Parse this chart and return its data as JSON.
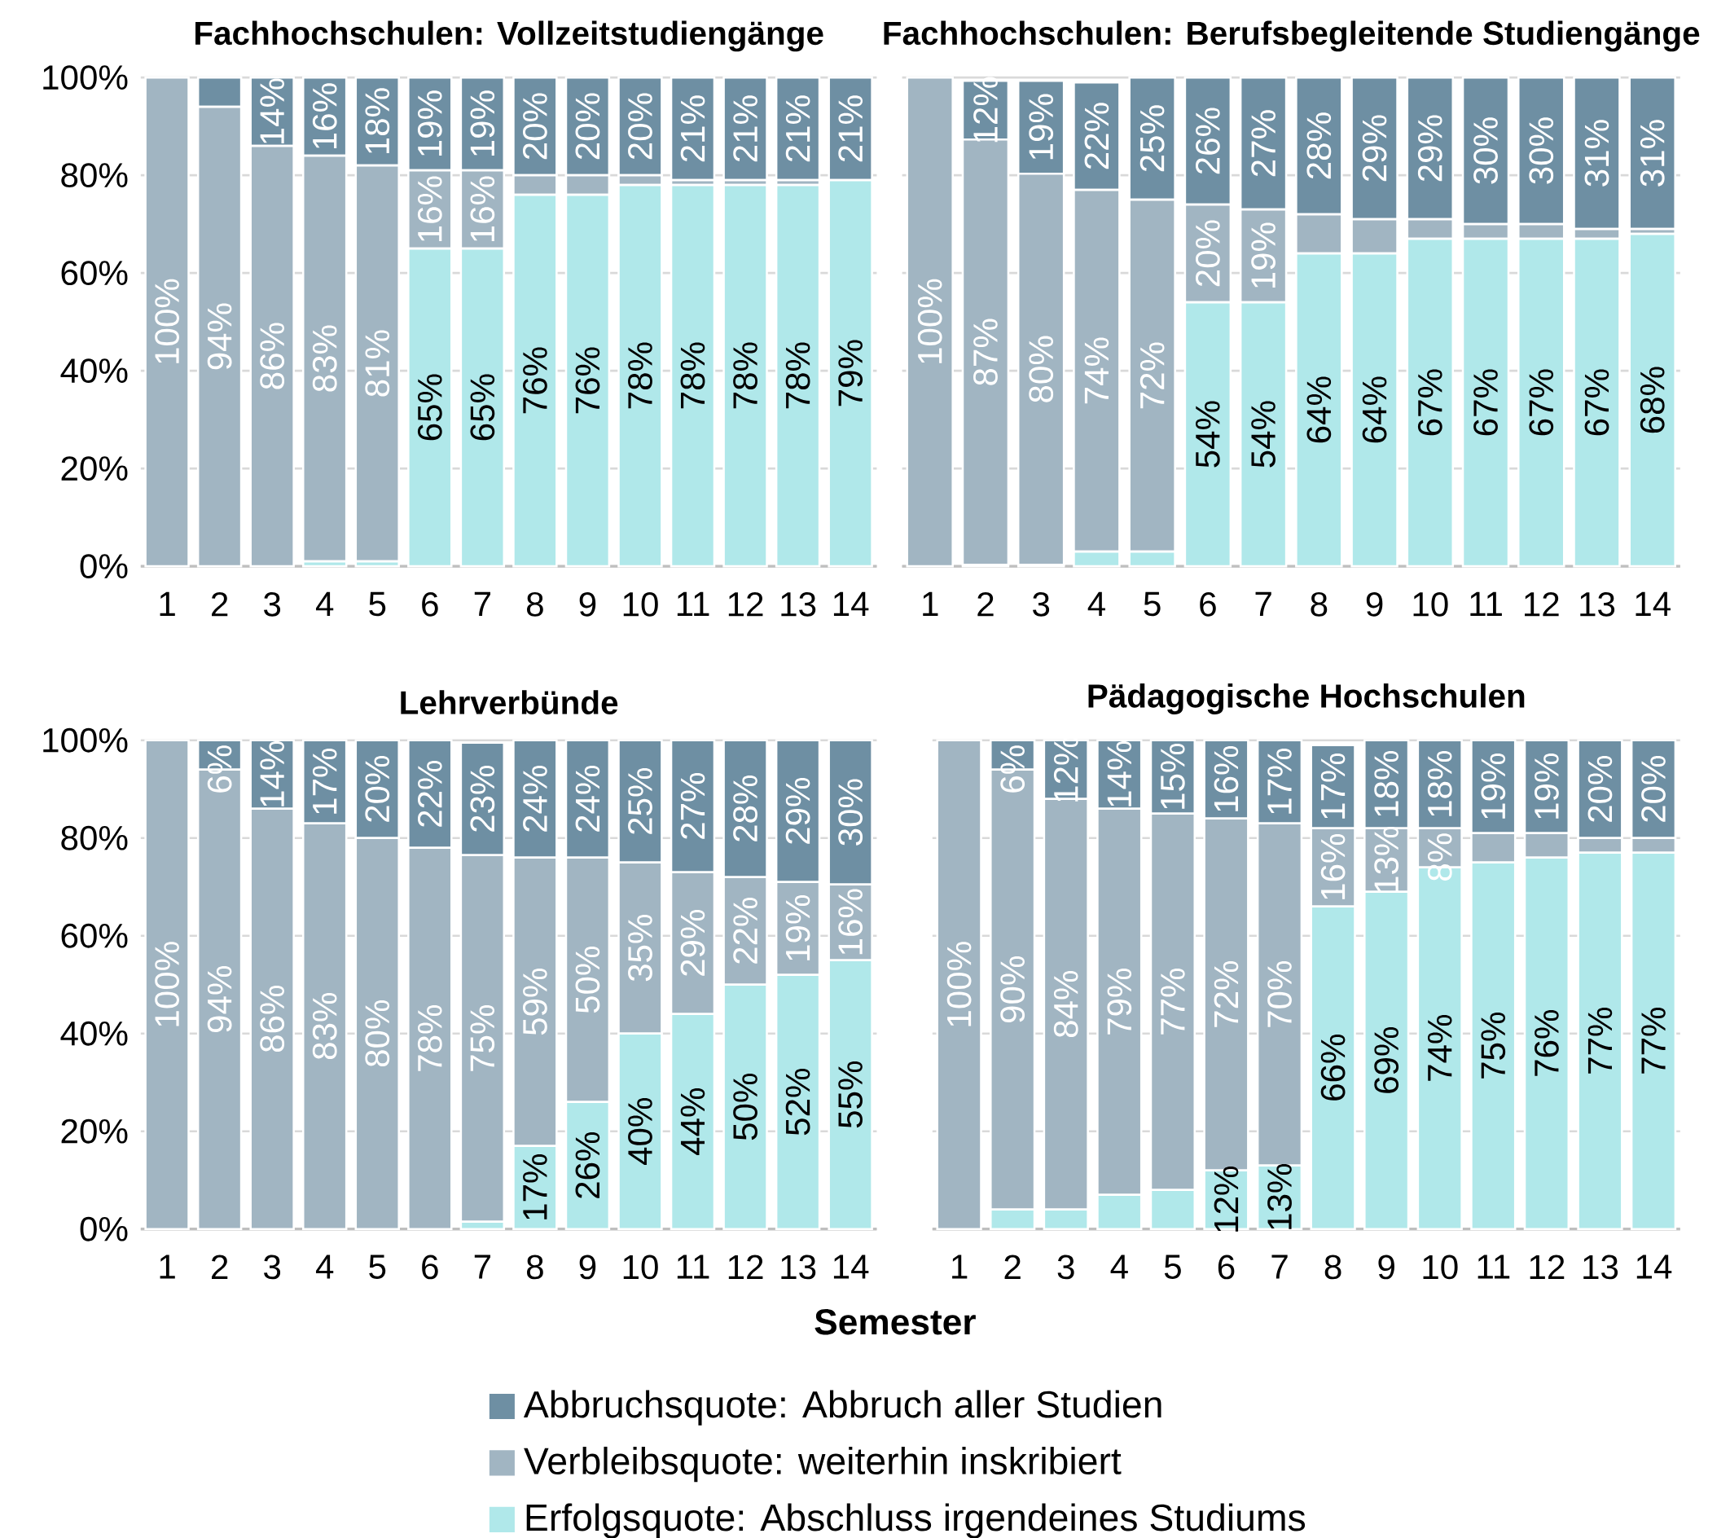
{
  "chart_data": [
    {
      "type": "bar",
      "stacked": true,
      "title": "Fachhochschulen: Vollzeitstudiengänge",
      "categories": [
        "1",
        "2",
        "3",
        "4",
        "5",
        "6",
        "7",
        "8",
        "9",
        "10",
        "11",
        "12",
        "13",
        "14"
      ],
      "ylim": [
        0,
        100
      ],
      "yticks": [
        {
          "value": 0,
          "label": "0%"
        },
        {
          "value": 20,
          "label": "20%"
        },
        {
          "value": 40,
          "label": "40%"
        },
        {
          "value": 60,
          "label": "60%"
        },
        {
          "value": 80,
          "label": "80%"
        },
        {
          "value": 100,
          "label": "100%"
        }
      ],
      "grid": "y",
      "series": [
        {
          "color": "#b0e8ea",
          "values": [
            0,
            0,
            0,
            1,
            1,
            65,
            65,
            76,
            76,
            78,
            78,
            78,
            78,
            79
          ],
          "value_labels": [
            null,
            null,
            null,
            null,
            null,
            "65%",
            "65%",
            "76%",
            "76%",
            "78%",
            "78%",
            "78%",
            "78%",
            "79%"
          ]
        },
        {
          "color": "#a1b5c2",
          "values": [
            100,
            94,
            86,
            83,
            81,
            16,
            16,
            4,
            4,
            2,
            1,
            1,
            1,
            0
          ],
          "value_labels": [
            "100%",
            "94%",
            "86%",
            "83%",
            "81%",
            "16%",
            "16%",
            null,
            null,
            null,
            null,
            null,
            null,
            null
          ]
        },
        {
          "color": "#6e8fa3",
          "values": [
            0,
            6,
            14,
            16,
            18,
            19,
            19,
            20,
            20,
            20,
            21,
            21,
            21,
            21
          ],
          "value_labels": [
            null,
            null,
            "14%",
            "16%",
            "18%",
            "19%",
            "19%",
            "20%",
            "20%",
            "20%",
            "21%",
            "21%",
            "21%",
            "21%"
          ]
        }
      ]
    },
    {
      "type": "bar",
      "stacked": true,
      "title": "Fachhochschulen: Berufsbegleitende Studiengänge",
      "categories": [
        "1",
        "2",
        "3",
        "4",
        "5",
        "6",
        "7",
        "8",
        "9",
        "10",
        "11",
        "12",
        "13",
        "14"
      ],
      "ylim": [
        0,
        100
      ],
      "yticks": [
        0,
        20,
        40,
        60,
        80,
        100
      ],
      "grid": "y",
      "tick_labels": "x",
      "series": [
        {
          "color": "#b0e8ea",
          "values": [
            0,
            0.3,
            0.3,
            3,
            3,
            54,
            54,
            64,
            64,
            67,
            67,
            67,
            67,
            68
          ],
          "value_labels": [
            null,
            null,
            null,
            null,
            null,
            "54%",
            "54%",
            "64%",
            "64%",
            "67%",
            "67%",
            "67%",
            "67%",
            "68%"
          ]
        },
        {
          "color": "#a1b5c2",
          "values": [
            100,
            87,
            80,
            74,
            72,
            20,
            19,
            8,
            7,
            4,
            3,
            3,
            2,
            1
          ],
          "value_labels": [
            "100%",
            "87%",
            "80%",
            "74%",
            "72%",
            "20%",
            "19%",
            null,
            null,
            null,
            null,
            null,
            null,
            null
          ]
        },
        {
          "color": "#6e8fa3",
          "values": [
            0,
            12,
            19,
            22,
            25,
            26,
            27,
            28,
            29,
            29,
            30,
            30,
            31,
            31
          ],
          "value_labels": [
            null,
            "12%",
            "19%",
            "22%",
            "25%",
            "26%",
            "27%",
            "28%",
            "29%",
            "29%",
            "30%",
            "30%",
            "31%",
            "31%"
          ]
        }
      ]
    },
    {
      "type": "bar",
      "stacked": true,
      "title": "Lehrverbünde",
      "categories": [
        "1",
        "2",
        "3",
        "4",
        "5",
        "6",
        "7",
        "8",
        "9",
        "10",
        "11",
        "12",
        "13",
        "14"
      ],
      "ylim": [
        0,
        100
      ],
      "yticks": [
        {
          "value": 0,
          "label": "0%"
        },
        {
          "value": 20,
          "label": "20%"
        },
        {
          "value": 40,
          "label": "40%"
        },
        {
          "value": 60,
          "label": "60%"
        },
        {
          "value": 80,
          "label": "80%"
        },
        {
          "value": 100,
          "label": "100%"
        }
      ],
      "grid": "y",
      "series": [
        {
          "color": "#b0e8ea",
          "values": [
            0,
            0,
            0,
            0,
            0,
            0,
            1.5,
            17,
            26,
            40,
            44,
            50,
            52,
            55
          ],
          "value_labels": [
            null,
            null,
            null,
            null,
            null,
            null,
            null,
            "17%",
            "26%",
            "40%",
            "44%",
            "50%",
            "52%",
            "55%"
          ]
        },
        {
          "color": "#a1b5c2",
          "values": [
            100,
            94,
            86,
            83,
            80,
            78,
            75,
            59,
            50,
            35,
            29,
            22,
            19,
            15.5
          ],
          "value_labels": [
            "100%",
            "94%",
            "86%",
            "83%",
            "80%",
            "78%",
            "75%",
            "59%",
            "50%",
            "35%",
            "29%",
            "22%",
            "19%",
            "16%"
          ]
        },
        {
          "color": "#6e8fa3",
          "values": [
            0,
            6,
            14,
            17,
            20,
            22,
            23,
            24,
            24,
            25,
            27,
            28,
            29,
            29.5
          ],
          "value_labels": [
            null,
            "6%",
            "14%",
            "17%",
            "20%",
            "22%",
            "23%",
            "24%",
            "24%",
            "25%",
            "27%",
            "28%",
            "29%",
            "30%"
          ]
        }
      ]
    },
    {
      "type": "bar",
      "stacked": true,
      "title": "Pädagogische Hochschulen",
      "xlabel": "Semester",
      "legend": "bottom",
      "categories": [
        "1",
        "2",
        "3",
        "4",
        "5",
        "6",
        "7",
        "8",
        "9",
        "10",
        "11",
        "12",
        "13",
        "14"
      ],
      "ylim": [
        0,
        100
      ],
      "yticks": [
        0,
        20,
        40,
        60,
        80,
        100
      ],
      "grid": "y",
      "tick_labels": "x",
      "series": [
        {
          "name": "Erfolgsquote: Abschluss irgendeines Studiums",
          "color": "#b0e8ea",
          "values": [
            0,
            4,
            4,
            7,
            8,
            12,
            13,
            66,
            69,
            74,
            75,
            76,
            77,
            77
          ],
          "value_labels": [
            null,
            null,
            null,
            null,
            null,
            "12%",
            "13%",
            "66%",
            "69%",
            "74%",
            "75%",
            "76%",
            "77%",
            "77%"
          ]
        },
        {
          "name": "Verbleibsquote: weiterhin inskribiert",
          "color": "#a1b5c2",
          "values": [
            100,
            90,
            84,
            79,
            77,
            72,
            70,
            16,
            13,
            8,
            6,
            5,
            3,
            3
          ],
          "value_labels": [
            "100%",
            "90%",
            "84%",
            "79%",
            "77%",
            "72%",
            "70%",
            "16%",
            "13%",
            "8%",
            null,
            null,
            null,
            null
          ]
        },
        {
          "name": "Abbruchsquote: Abbruch aller Studien",
          "color": "#6e8fa3",
          "values": [
            0,
            6,
            12,
            14,
            15,
            16,
            17,
            17,
            18,
            18,
            19,
            19,
            20,
            20
          ],
          "value_labels": [
            null,
            "6%",
            "12%",
            "14%",
            "15%",
            "16%",
            "17%",
            "17%",
            "18%",
            "18%",
            "19%",
            "19%",
            "20%",
            "20%"
          ]
        }
      ]
    }
  ]
}
